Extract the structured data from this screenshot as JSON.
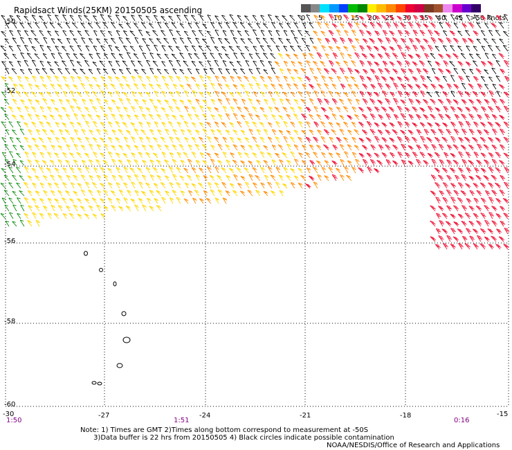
{
  "title": "Rapidsact Winds(25KM) 20150505 ascending",
  "colorbar": {
    "colors": [
      "#555555",
      "#888888",
      "#00e0ff",
      "#0099ff",
      "#0040ff",
      "#00bb00",
      "#008800",
      "#ffee00",
      "#ffbb00",
      "#ff8800",
      "#ff4400",
      "#ee0033",
      "#cc0044",
      "#7a3a22",
      "#a0522d",
      "#ee88ee",
      "#cc00cc",
      "#6600cc",
      "#330066"
    ],
    "labels": [
      "0",
      "5",
      "10",
      "15",
      "20",
      "25",
      "30",
      "35",
      "40",
      "45",
      ">50 knots"
    ]
  },
  "map": {
    "lat_labels": [
      "-50",
      "-52",
      "-54",
      "-56",
      "-58",
      "-60"
    ],
    "lon_labels": [
      "-27",
      "-24",
      "-21",
      "-18",
      "-15"
    ],
    "corner_label": "-30",
    "times": [
      "1:50",
      "1:51",
      "0:16"
    ],
    "colors": {
      "black": "#000000",
      "green": "#008800",
      "yellow": "#ffd700",
      "orange": "#ff8c00",
      "red": "#ee1133",
      "brown": "#7a3a22"
    }
  },
  "note": "Note: 1) Times are GMT 2)Times along bottom correspond to measurement at -50S\n      3)Data buffer is 22 hrs from 20150505 4) Black circles indicate possible contamination",
  "credit": "NOAA/NESDIS/Office of Research and Applications"
}
